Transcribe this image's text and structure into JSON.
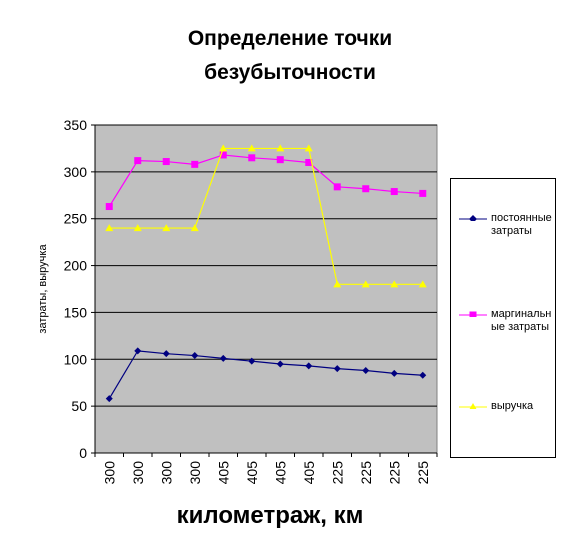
{
  "chart_data": {
    "type": "line",
    "title_lines": [
      "Определение точки",
      "безубыточности"
    ],
    "xlabel": "километраж, км",
    "ylabel": "затраты, выручка",
    "categories": [
      "300",
      "300",
      "300",
      "300",
      "405",
      "405",
      "405",
      "405",
      "225",
      "225",
      "225",
      "225"
    ],
    "ylim": [
      0,
      350
    ],
    "yticks": [
      0,
      50,
      100,
      150,
      200,
      250,
      300,
      350
    ],
    "grid": true,
    "legend_position": "right",
    "series": [
      {
        "name": "постоянные затраты",
        "color": "#000080",
        "marker": "diamond",
        "values": [
          58,
          109,
          106,
          104,
          101,
          98,
          95,
          93,
          90,
          88,
          85,
          83
        ]
      },
      {
        "name": "маргинальные затраты",
        "color": "#ff00ff",
        "marker": "square",
        "values": [
          263,
          312,
          311,
          308,
          318,
          315,
          313,
          310,
          284,
          282,
          279,
          277
        ]
      },
      {
        "name": "выручка",
        "color": "#ffff00",
        "marker": "triangle",
        "values": [
          240,
          240,
          240,
          240,
          325,
          325,
          325,
          325,
          180,
          180,
          180,
          180
        ]
      }
    ]
  },
  "legend": {
    "items": [
      {
        "text_line1": "постоянные",
        "text_line2": "затраты"
      },
      {
        "text_line1": "маргинальн",
        "text_line2": "ые затраты"
      },
      {
        "text_line1": "выручка",
        "text_line2": ""
      }
    ]
  },
  "colors": {
    "plot_background": "#c0c0c0",
    "grid": "#000000"
  }
}
